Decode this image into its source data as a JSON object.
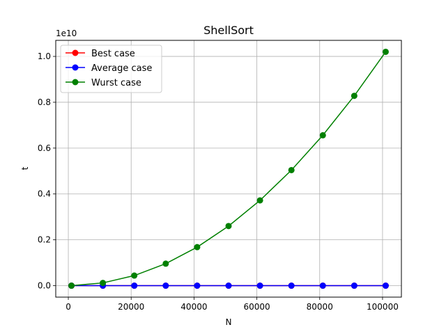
{
  "chart_data": {
    "type": "line",
    "title": "ShellSort",
    "xlabel": "N",
    "ylabel": "t",
    "y_offset_label": "1e10",
    "xlim": [
      -4000,
      106000
    ],
    "ylim": [
      -0.05,
      1.07
    ],
    "y_scale_factor": 10000000000.0,
    "xticks": [
      0,
      20000,
      40000,
      60000,
      80000,
      100000
    ],
    "xtick_labels": [
      "0",
      "20000",
      "40000",
      "60000",
      "80000",
      "100000"
    ],
    "yticks": [
      0.0,
      0.2,
      0.4,
      0.6,
      0.8,
      1.0
    ],
    "ytick_labels": [
      "0.0",
      "0.2",
      "0.4",
      "0.6",
      "0.8",
      "1.0"
    ],
    "grid": true,
    "legend_position": "upper-left",
    "x": [
      1000,
      11000,
      21000,
      31000,
      41000,
      51000,
      61000,
      71000,
      81000,
      91000,
      101000
    ],
    "series": [
      {
        "name": "Best case",
        "color": "#ff0000",
        "values": [
          0,
          0,
          0,
          0,
          0,
          0,
          0,
          0,
          0,
          0,
          0
        ]
      },
      {
        "name": "Average case",
        "color": "#0000ff",
        "values": [
          0,
          0,
          0,
          0,
          0,
          0,
          0,
          0,
          0,
          0,
          0
        ]
      },
      {
        "name": "Wurst case",
        "color": "#008000",
        "values": [
          0.0,
          0.012,
          0.044,
          0.096,
          0.168,
          0.26,
          0.372,
          0.504,
          0.656,
          0.828,
          1.02
        ]
      }
    ]
  }
}
